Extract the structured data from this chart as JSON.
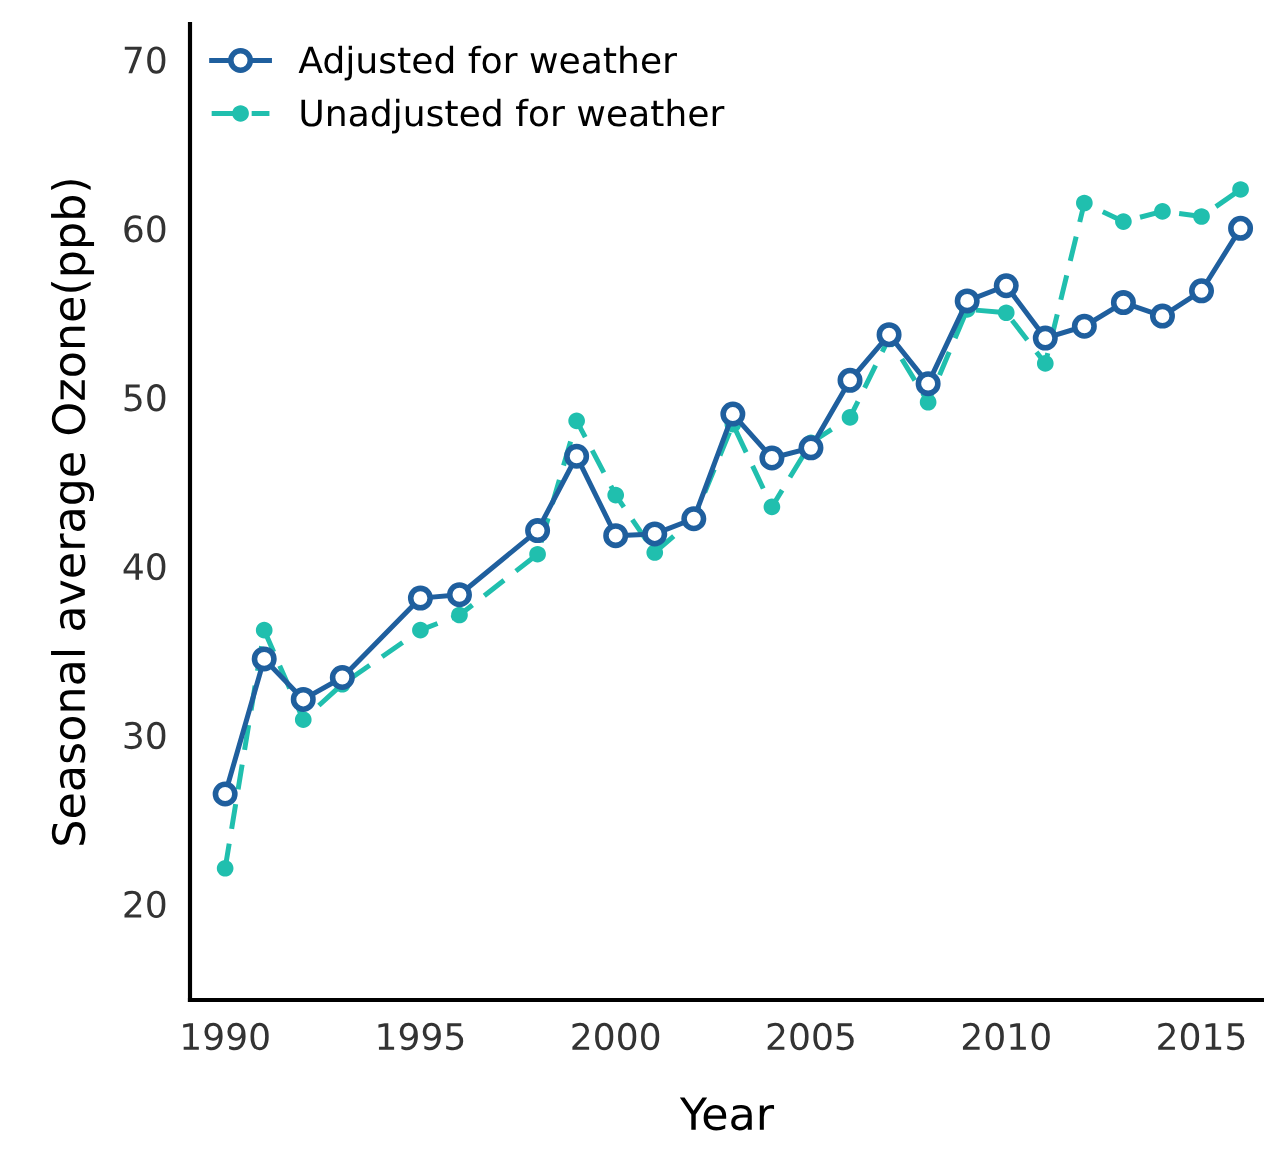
{
  "chart_data": {
    "type": "line",
    "xlabel": "Year",
    "ylabel": "Seasonal average Ozone(ppb)",
    "x": [
      1990,
      1991,
      1992,
      1993,
      1995,
      1996,
      1998,
      1999,
      2000,
      2001,
      2002,
      2003,
      2004,
      2005,
      2006,
      2007,
      2008,
      2009,
      2010,
      2011,
      2012,
      2013,
      2014,
      2015,
      2016
    ],
    "series": [
      {
        "name": "Adjusted for weather",
        "color": "#1f5f9e",
        "marker": "circle",
        "line_style": "solid",
        "values": [
          26.5,
          34.5,
          32.1,
          33.4,
          38.1,
          38.3,
          42.1,
          46.5,
          41.8,
          41.9,
          42.8,
          49.0,
          46.4,
          47.0,
          51.0,
          53.7,
          50.8,
          55.7,
          56.6,
          53.5,
          54.2,
          55.6,
          54.8,
          56.3,
          60.0
        ]
      },
      {
        "name": "Unadjusted for weather",
        "color": "#20bfae",
        "marker": "circle",
        "line_style": "dashed",
        "values": [
          22.1,
          36.2,
          30.9,
          33.0,
          36.2,
          37.1,
          40.7,
          48.6,
          44.2,
          40.8,
          42.8,
          48.4,
          43.5,
          47.3,
          48.8,
          53.5,
          49.7,
          55.2,
          55.0,
          52.0,
          61.5,
          60.4,
          61.0,
          60.7,
          62.3
        ]
      }
    ],
    "xlim": [
      1989.1,
      2016.6
    ],
    "ylim": [
      14.3,
      72.1
    ],
    "xticks": [
      1990,
      1995,
      2000,
      2005,
      2010,
      2015
    ],
    "yticks": [
      20,
      30,
      40,
      50,
      60,
      70
    ],
    "grid": false,
    "legend": "top left"
  }
}
